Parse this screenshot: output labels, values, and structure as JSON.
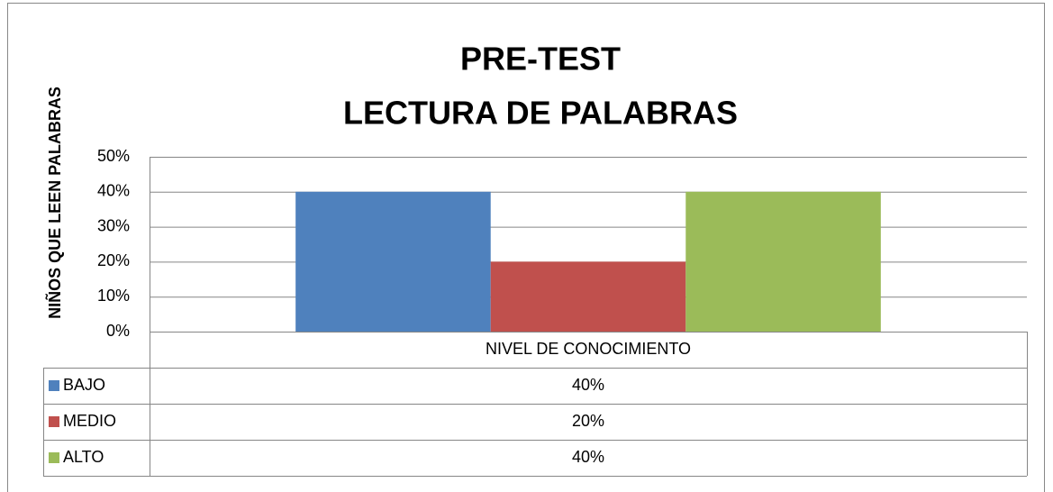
{
  "chart_data": {
    "type": "bar",
    "title": [
      "PRE-TEST",
      "LECTURA DE PALABRAS"
    ],
    "ylabel": "NIÑOS QUE LEEN PALABRAS",
    "categories": [
      "NIVEL DE CONOCIMIENTO"
    ],
    "series": [
      {
        "name": "BAJO",
        "color": "#4f81bd",
        "values": [
          40
        ],
        "value_labels": [
          "40%"
        ]
      },
      {
        "name": "MEDIO",
        "color": "#c0504d",
        "values": [
          20
        ],
        "value_labels": [
          "20%"
        ]
      },
      {
        "name": "ALTO",
        "color": "#9bbb59",
        "values": [
          40
        ],
        "value_labels": [
          "40%"
        ]
      }
    ],
    "ylim": [
      0,
      50
    ],
    "yticks": [
      {
        "value": 0,
        "label": "0%"
      },
      {
        "value": 10,
        "label": "10%"
      },
      {
        "value": 20,
        "label": "20%"
      },
      {
        "value": 30,
        "label": "30%"
      },
      {
        "value": 40,
        "label": "40%"
      },
      {
        "value": 50,
        "label": "50%"
      }
    ],
    "grid": true,
    "data_table": true
  }
}
